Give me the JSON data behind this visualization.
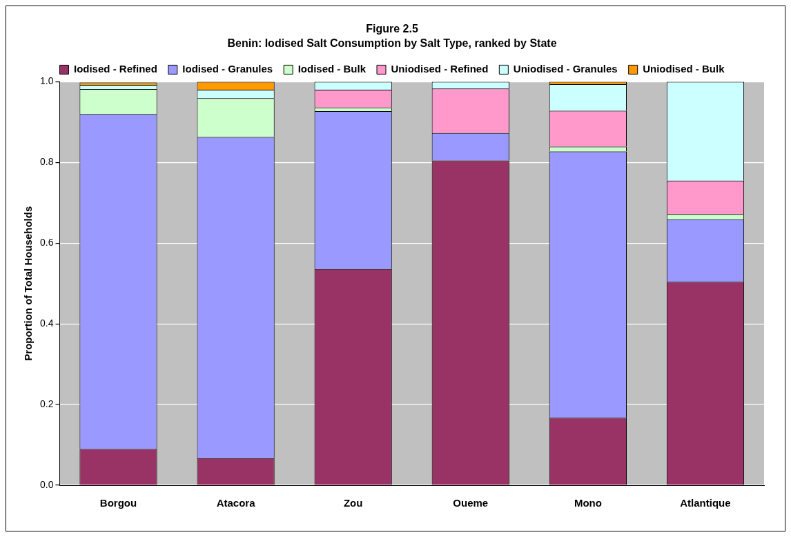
{
  "chart_data": {
    "type": "bar",
    "title": "Figure 2.5",
    "subtitle": "Benin: Iodised Salt Consumption by Salt Type, ranked by State",
    "ylabel": "Proportion of Total Households",
    "categories": [
      "Borgou",
      "Atacora",
      "Zou",
      "Oueme",
      "Mono",
      "Atlantique"
    ],
    "stacked": true,
    "series": [
      {
        "name": "Iodised - Refined",
        "color": "#993366",
        "values": [
          0.09,
          0.067,
          0.536,
          0.805,
          0.167,
          0.504
        ]
      },
      {
        "name": "Iodised - Granules",
        "color": "#9999ff",
        "values": [
          0.83,
          0.796,
          0.391,
          0.068,
          0.66,
          0.155
        ]
      },
      {
        "name": "Iodised - Bulk",
        "color": "#ccffcc",
        "values": [
          0.062,
          0.096,
          0.009,
          0,
          0.012,
          0.013
        ]
      },
      {
        "name": "Uniodised - Refined",
        "color": "#ff99cc",
        "values": [
          null,
          0,
          0.044,
          0.11,
          0.089,
          0.083
        ]
      },
      {
        "name": "Uniodised - Granules",
        "color": "#ccffff",
        "values": [
          0.01,
          0.021,
          0.02,
          0.017,
          0.066,
          0.245
        ]
      },
      {
        "name": "Uniodised - Bulk",
        "color": "#ff9900",
        "values": [
          0.006,
          0.02,
          0,
          0,
          0.006,
          0
        ]
      }
    ],
    "ylim": [
      0,
      1
    ],
    "yticks": [
      {
        "value": 0,
        "label": "0.0"
      },
      {
        "value": 0.2,
        "label": "0.2"
      },
      {
        "value": 0.4,
        "label": "0.4"
      },
      {
        "value": 0.6,
        "label": "0.6"
      },
      {
        "value": 0.8,
        "label": "0.8"
      },
      {
        "value": 1,
        "label": "1.0"
      }
    ],
    "grid": "y",
    "legend": "top"
  }
}
